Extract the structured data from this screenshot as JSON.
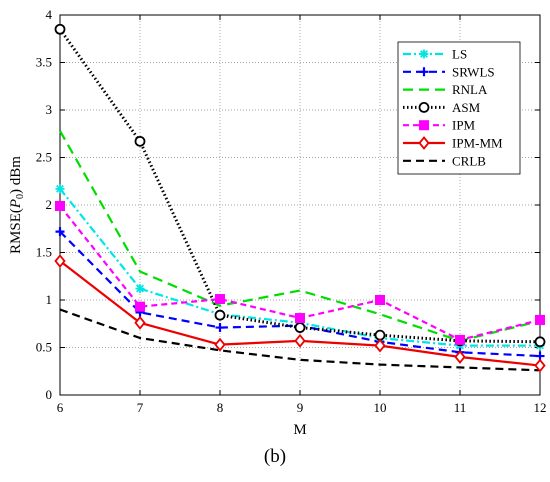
{
  "caption": "(b)",
  "chart_data": {
    "type": "line",
    "xlabel": "M",
    "ylabel_main": "RMSE(",
    "ylabel_italic": "P",
    "ylabel_sub": "0",
    "ylabel_tail": ") dBm",
    "x": [
      6,
      7,
      8,
      9,
      10,
      11,
      12
    ],
    "xlim": [
      6,
      12
    ],
    "ylim": [
      0,
      4
    ],
    "xticks": [
      "6",
      "7",
      "8",
      "9",
      "10",
      "11",
      "12"
    ],
    "yticks": [
      0,
      0.5,
      1,
      1.5,
      2,
      2.5,
      3,
      3.5,
      4
    ],
    "ytick_labels": [
      "0",
      "0.5",
      "1",
      "1.5",
      "2",
      "2.5",
      "3",
      "3.5",
      "4"
    ],
    "grid": "dotted",
    "legend_position": "top-right",
    "series": [
      {
        "name": "LS",
        "values": [
          2.17,
          1.12,
          0.85,
          0.76,
          0.6,
          0.52,
          0.52
        ],
        "color": "#00e5e5",
        "dash": "8 3 2 3",
        "marker": "star"
      },
      {
        "name": "SRWLS",
        "values": [
          1.72,
          0.87,
          0.71,
          0.73,
          0.56,
          0.45,
          0.41
        ],
        "color": "#0000ff",
        "dash": "8 5",
        "marker": "plus"
      },
      {
        "name": "RNLA",
        "values": [
          2.78,
          1.3,
          0.94,
          1.1,
          0.85,
          0.57,
          0.78
        ],
        "color": "#00dd00",
        "dash": "10 6",
        "marker": "none"
      },
      {
        "name": "ASM",
        "values": [
          3.85,
          2.67,
          0.84,
          0.71,
          0.63,
          0.57,
          0.56
        ],
        "color": "#000000",
        "dash": "1.5 2.5",
        "marker": "circle"
      },
      {
        "name": "IPM",
        "values": [
          1.99,
          0.93,
          1.01,
          0.81,
          1.0,
          0.58,
          0.79
        ],
        "color": "#ff00ff",
        "dash": "6 4",
        "marker": "square"
      },
      {
        "name": "IPM-MM",
        "values": [
          1.41,
          0.76,
          0.53,
          0.57,
          0.52,
          0.4,
          0.31
        ],
        "color": "#ee0000",
        "dash": "",
        "marker": "diamond"
      },
      {
        "name": "CRLB",
        "values": [
          0.9,
          0.6,
          0.47,
          0.37,
          0.32,
          0.29,
          0.26
        ],
        "color": "#000000",
        "dash": "8 5",
        "marker": "none"
      }
    ]
  }
}
